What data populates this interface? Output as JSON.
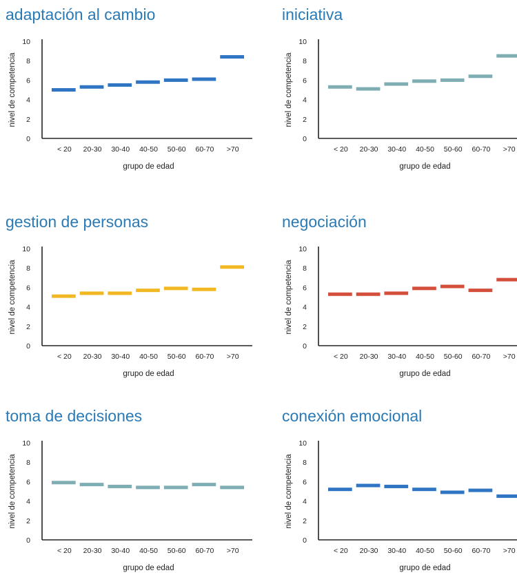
{
  "chart_data": [
    {
      "type": "line",
      "title": "adaptación al cambio",
      "color": "#2f75c4",
      "xlabel": "grupo de edad",
      "ylabel": "nivel de competencia",
      "ylim": [
        0,
        10
      ],
      "yticks": [
        "0",
        "2",
        "4",
        "6",
        "8",
        "10"
      ],
      "categories": [
        "< 20",
        "20-30",
        "30-40",
        "40-50",
        "50-60",
        "60-70",
        ">70"
      ],
      "values": [
        5.0,
        5.3,
        5.5,
        5.8,
        6.0,
        6.1,
        8.4
      ]
    },
    {
      "type": "line",
      "title": "iniciativa",
      "color": "#7eaeb4",
      "xlabel": "grupo de edad",
      "ylabel": "nivel de competencia",
      "ylim": [
        0,
        10
      ],
      "yticks": [
        "0",
        "2",
        "4",
        "6",
        "8",
        "10"
      ],
      "categories": [
        "< 20",
        "20-30",
        "30-40",
        "40-50",
        "50-60",
        "60-70",
        ">70"
      ],
      "values": [
        5.3,
        5.1,
        5.6,
        5.9,
        6.0,
        6.4,
        8.5
      ]
    },
    {
      "type": "line",
      "title": "gestion de personas",
      "color": "#f2b824",
      "xlabel": "grupo de edad",
      "ylabel": "nivel de competencia",
      "ylim": [
        0,
        10
      ],
      "yticks": [
        "0",
        "2",
        "4",
        "6",
        "8",
        "10"
      ],
      "categories": [
        "< 20",
        "20-30",
        "30-40",
        "40-50",
        "50-60",
        "60-70",
        ">70"
      ],
      "values": [
        5.1,
        5.4,
        5.4,
        5.7,
        5.9,
        5.8,
        8.1
      ]
    },
    {
      "type": "line",
      "title": "negociación",
      "color": "#d44e3c",
      "xlabel": "grupo de edad",
      "ylabel": "nivel de competencia",
      "ylim": [
        0,
        10
      ],
      "yticks": [
        "0",
        "2",
        "4",
        "6",
        "8",
        "10"
      ],
      "categories": [
        "< 20",
        "20-30",
        "30-40",
        "40-50",
        "50-60",
        "60-70",
        ">70"
      ],
      "values": [
        5.3,
        5.3,
        5.4,
        5.9,
        6.1,
        5.7,
        6.8
      ]
    },
    {
      "type": "line",
      "title": "toma de decisiones",
      "color": "#7eaeb4",
      "xlabel": "grupo de edad",
      "ylabel": "nivel de competencia",
      "ylim": [
        0,
        10
      ],
      "yticks": [
        "0",
        "2",
        "4",
        "6",
        "8",
        "10"
      ],
      "categories": [
        "< 20",
        "20-30",
        "30-40",
        "40-50",
        "50-60",
        "60-70",
        ">70"
      ],
      "values": [
        5.9,
        5.7,
        5.5,
        5.4,
        5.4,
        5.7,
        5.4
      ]
    },
    {
      "type": "line",
      "title": "conexión emocional",
      "color": "#2f75c4",
      "xlabel": "grupo de edad",
      "ylabel": "nivel de competencia",
      "ylim": [
        0,
        10
      ],
      "yticks": [
        "0",
        "2",
        "4",
        "6",
        "8",
        "10"
      ],
      "categories": [
        "< 20",
        "20-30",
        "30-40",
        "40-50",
        "50-60",
        "60-70",
        ">70"
      ],
      "values": [
        5.2,
        5.6,
        5.5,
        5.2,
        4.9,
        5.1,
        4.5
      ]
    }
  ]
}
